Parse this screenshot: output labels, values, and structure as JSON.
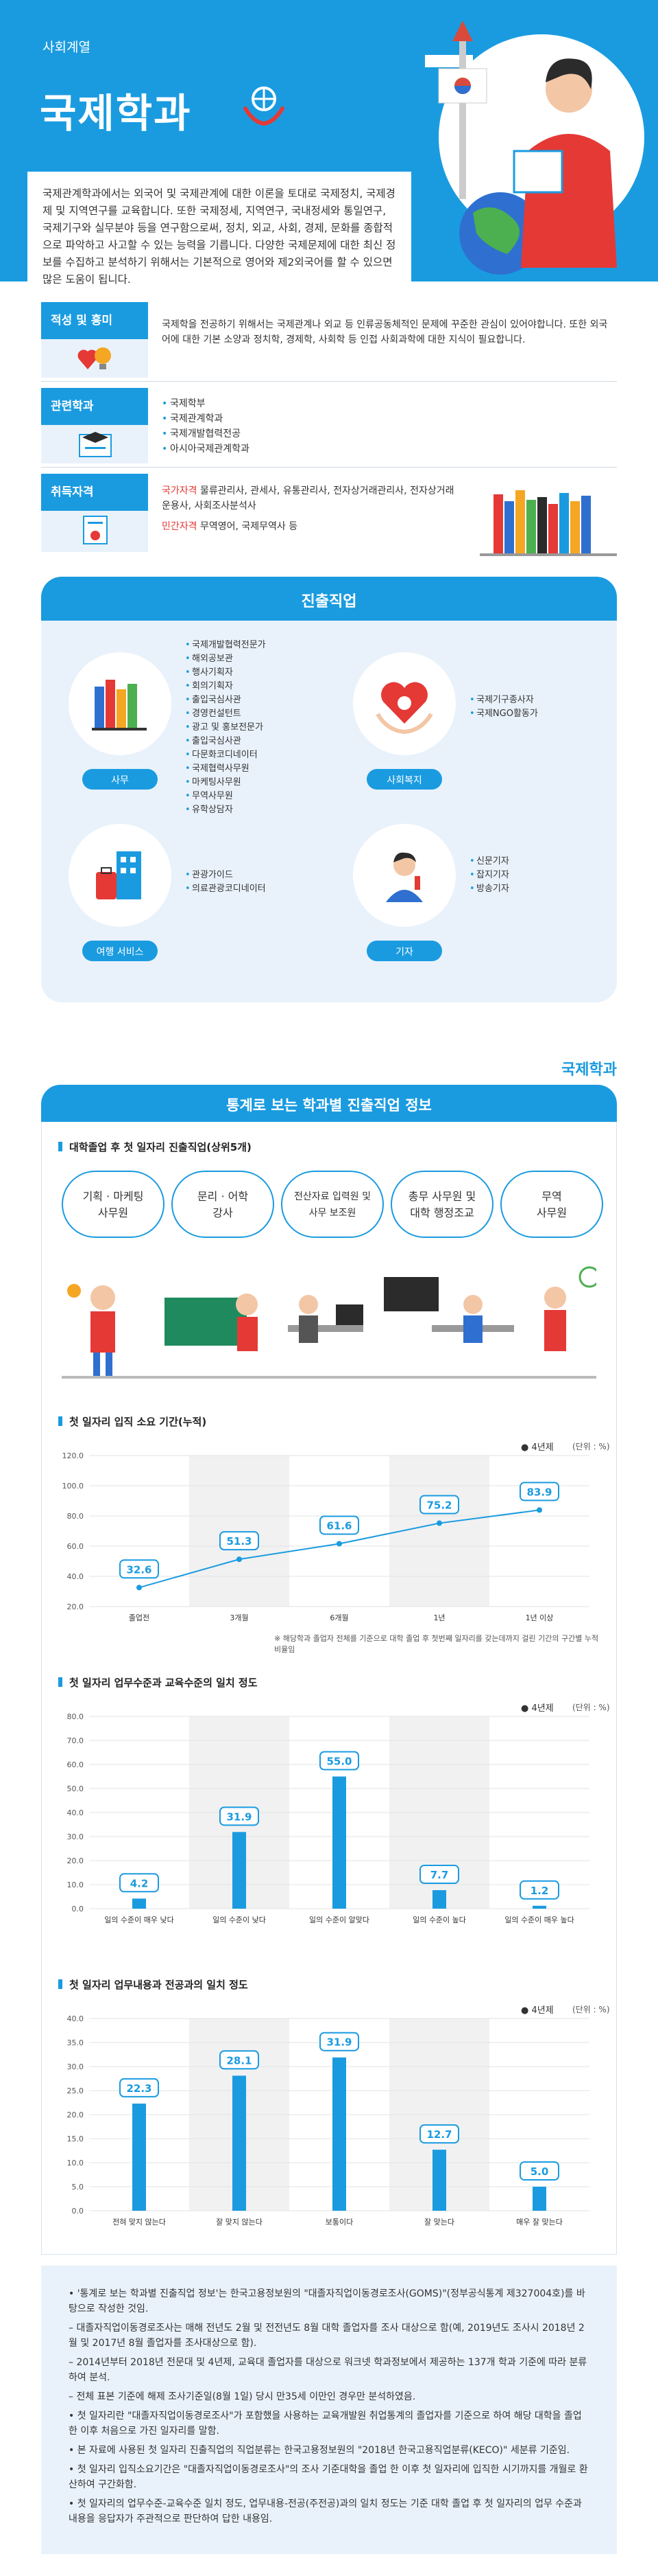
{
  "hero": {
    "category": "사회계열",
    "title": "국제학과",
    "intro": "국제관계학과에서는 외국어 및 국제관계에 대한 이론을 토대로 국제정치, 국제경제 및 지역연구를 교육합니다. 또한 국제정세, 지역연구, 국내정세와 통일연구, 국제기구와 실무분야 등을 연구함으로써, 정치, 외교, 사회, 경제, 문화를 종합적으로 파악하고 사고할 수 있는 능력을 기릅니다. 다양한 국제문제에 대한 최신 정보를 수집하고 분석하기 위해서는 기본적으로 영어와 제2외국어를 할 수 있으면 많은 도움이 됩니다."
  },
  "aptitude": {
    "label": "적성 및 흥미",
    "text": "국제학을 전공하기 위해서는 국제관계나 외교 등 인류공동체적인 문제에 꾸준한 관심이 있어야합니다. 또한 외국어에 대한 기본 소양과 정치학, 경제학, 사회학 등 인접 사회과학에 대한 지식이 필요합니다."
  },
  "related": {
    "label": "관련학과",
    "items": [
      "국제학부",
      "국제관계학과",
      "국제개발협력전공",
      "아시아국제관계학과"
    ]
  },
  "license": {
    "label": "취득자격",
    "national_label": "국가자격",
    "national": "물류관리사, 관세사, 유통관리사, 전자상거래관리사, 전자상거래운용사, 사회조사분석사",
    "private_label": "민간자격",
    "private": "무역영어, 국제무역사 등"
  },
  "career": {
    "title": "진출직업",
    "groups": [
      {
        "label": "사무",
        "jobs": [
          "국제개발협력전문가",
          "해외공보관",
          "행사기획자",
          "회의기획자",
          "출입국심사관",
          "경영컨설턴트",
          "광고 및 홍보전문가",
          "출입국심사관",
          "다문화코디네이터",
          "국제협력사무원",
          "마케팅사무원",
          "무역사무원",
          "유학상담자"
        ]
      },
      {
        "label": "사회복지",
        "jobs": [
          "국제기구종사자",
          "국제NGO활동가"
        ]
      },
      {
        "label": "여행 서비스",
        "jobs": [
          "관광가이드",
          "의료관광코디네이터"
        ]
      },
      {
        "label": "기자",
        "jobs": [
          "신문기자",
          "잡지기자",
          "방송기자"
        ]
      }
    ]
  },
  "tag": "국제학과",
  "stats": {
    "title": "통계로 보는 학과별 진출직업 정보",
    "jobs_title": "대학졸업 후 첫 일자리 진출직업(상위5개)",
    "top_jobs": [
      "기획 · 마케팅\n사무원",
      "문리 · 어학\n강사",
      "전산자료 입력원 및\n사무 보조원",
      "총무 사무원 및\n대학 행정조교",
      "무역\n사무원"
    ]
  },
  "chart_data": [
    {
      "type": "line",
      "title": "첫 일자리 입직 소요 기간(누적)",
      "legend": "4년제",
      "unit": "(단위 : %)",
      "categories": [
        "졸업전",
        "3개월",
        "6개월",
        "1년",
        "1년 이상"
      ],
      "values": [
        32.6,
        51.3,
        61.6,
        75.2,
        83.9
      ],
      "yticks": [
        "120.0",
        "100.0",
        "80.0",
        "60.0",
        "40.0",
        "20.0"
      ],
      "ylim": [
        20,
        120
      ],
      "note": "※ 해당학과 졸업자 전체를 기준으로 대학 졸업 후 첫번째 일자리를 갖는데까지 걸린 기간의 구간별 누적비율임"
    },
    {
      "type": "bar",
      "title": "첫 일자리 업무수준과 교육수준의 일치 정도",
      "legend": "4년제",
      "unit": "(단위 : %)",
      "categories": [
        "일의 수준이 매우 낮다",
        "일의 수준이 낮다",
        "일의 수준이 알맞다",
        "일의 수준이 높다",
        "일의 수준이 매우 높다"
      ],
      "values": [
        4.2,
        31.9,
        55.0,
        7.7,
        1.2
      ],
      "yticks": [
        "80.0",
        "70.0",
        "60.0",
        "50.0",
        "40.0",
        "30.0",
        "20.0",
        "10.0",
        "0.0"
      ],
      "ylim": [
        0,
        80
      ]
    },
    {
      "type": "bar",
      "title": "첫 일자리 업무내용과 전공과의 일치 정도",
      "legend": "4년제",
      "unit": "(단위 : %)",
      "categories": [
        "전혀 맞지 않는다",
        "잘 맞지 않는다",
        "보통이다",
        "잘 맞는다",
        "매우 잘 맞는다"
      ],
      "values": [
        22.3,
        28.1,
        31.9,
        12.7,
        5.0
      ],
      "yticks": [
        "40.0",
        "35.0",
        "30.0",
        "25.0",
        "20.0",
        "15.0",
        "10.0",
        "5.0",
        "0.0"
      ],
      "ylim": [
        0,
        40
      ]
    }
  ],
  "notes": [
    "• '통계로 보는 학과별 진출직업 정보'는 한국고용정보원의 \"대졸자직업이동경로조사(GOMS)\"(정부공식통계 제327004호)를 바탕으로 작성한 것임.",
    "– 대졸자직업이동경로조사는 매해 전년도 2월 및 전전년도 8월 대학 졸업자를 조사 대상으로 함(예, 2019년도 조사시 2018년 2월 및 2017년 8월 졸업자를 조사대상으로 함).",
    "– 2014년부터 2018년 전문대 및 4년제, 교육대 졸업자를 대상으로 워크넷 학과정보에서 제공하는 137개 학과 기준에 따라 분류하여 분석.",
    "– 전체 표본 기준에 해제 조사기준일(8월 1일) 당시 만35세 이만인 경우만 분석하였음.",
    "• 첫 일자리란 \"대졸자직업이동경로조사\"가 포함했을 사용하는 교육개발원 취업통계의 졸업자를 기준으로 하여 해당 대학을 졸업한 이후 처음으로 가진 일자리를 말함.",
    "• 본 자료에 사용된 첫 일자리 진출직업의 직업분류는 한국고용정보원의 \"2018년 한국고용직업분류(KECO)\" 세분류 기준임.",
    "• 첫 일자리 입직소요기간은 \"대졸자직업이동경로조사\"의 조사 기준대학을 졸업 한 이후 첫 일자리에 입직한 시기까지를 개월로 환산하여 구간화함.",
    "• 첫 일자리의 업무수준-교육수준 일치 정도, 업무내용-전공(주전공)과의 일치 정도는 기준 대학 졸업 후 첫 일자리의 업무 수준과 내용을 응답자가 주관적으로 판단하여 답한 내용임."
  ],
  "colors": {
    "primary": "#1a9be0",
    "light": "#e9f2fb",
    "accent": "#e53935"
  }
}
